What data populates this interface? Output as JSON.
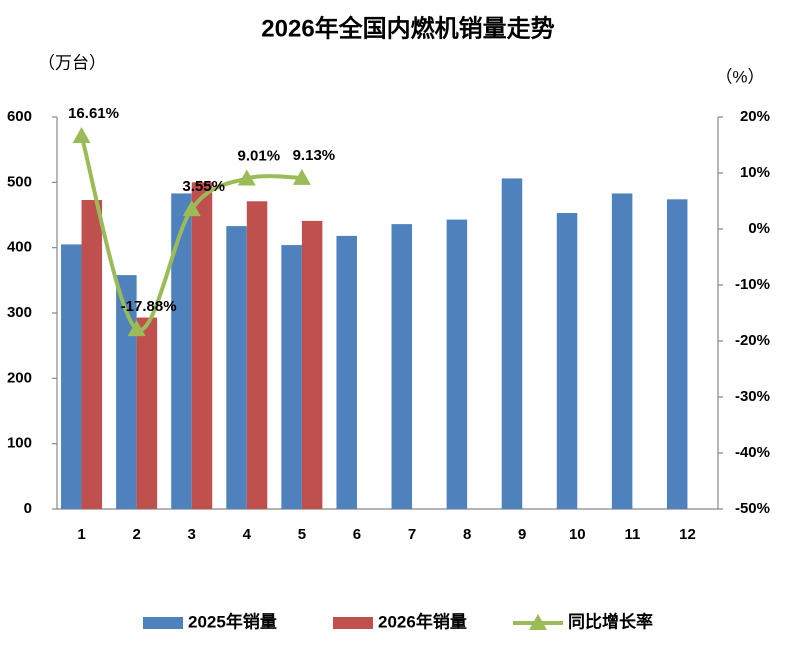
{
  "chart_data": {
    "type": "bar",
    "title": "2026年全国内燃机销量走势",
    "y_label": "（万台）",
    "y2_label": "（%）",
    "categories": [
      "1",
      "2",
      "3",
      "4",
      "5",
      "6",
      "7",
      "8",
      "9",
      "10",
      "11",
      "12"
    ],
    "series": [
      {
        "name": "2025年销量",
        "type": "bar",
        "color": "#4f81bd",
        "values": [
          405,
          358,
          483,
          433,
          404,
          418,
          436,
          443,
          506,
          453,
          483,
          474
        ]
      },
      {
        "name": "2026年销量",
        "type": "bar",
        "color": "#c0504d",
        "values": [
          473,
          293,
          500,
          471,
          441,
          null,
          null,
          null,
          null,
          null,
          null,
          null
        ]
      },
      {
        "name": "同比增长率",
        "type": "line",
        "axis": "y2",
        "color": "#9bbb59",
        "values": [
          16.61,
          -17.88,
          3.55,
          9.01,
          9.13,
          null,
          null,
          null,
          null,
          null,
          null,
          null
        ],
        "value_labels": [
          "16.61%",
          "-17.88%",
          "3.55%",
          "9.01%",
          "9.13%",
          null,
          null,
          null,
          null,
          null,
          null,
          null
        ]
      }
    ],
    "ylim": [
      0,
      600
    ],
    "yticks": [
      0,
      100,
      200,
      300,
      400,
      500,
      600
    ],
    "y2lim": [
      -50,
      20
    ],
    "y2ticks": [
      {
        "value": -50,
        "label": "-50%"
      },
      {
        "value": -40,
        "label": "-40%"
      },
      {
        "value": -30,
        "label": "-30%"
      },
      {
        "value": -20,
        "label": "-20%"
      },
      {
        "value": -10,
        "label": "-10%"
      },
      {
        "value": 0,
        "label": "0%"
      },
      {
        "value": 10,
        "label": "10%"
      },
      {
        "value": 20,
        "label": "20%"
      }
    ],
    "grid": false,
    "legend": "bottom"
  }
}
